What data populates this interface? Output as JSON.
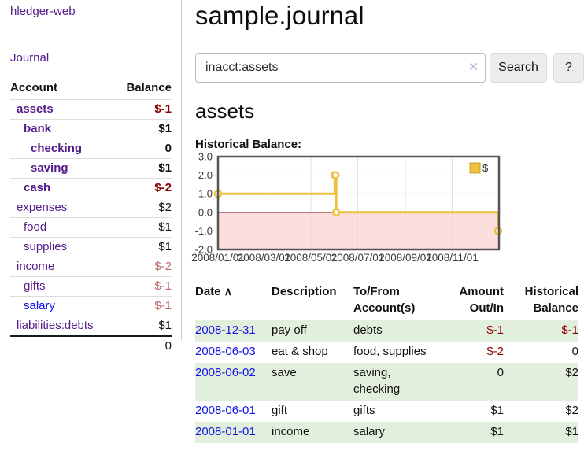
{
  "sidebar": {
    "brand": "hledger-web",
    "journal_link": "Journal",
    "accounts": {
      "col_account": "Account",
      "col_balance": "Balance",
      "rows": [
        {
          "name": "assets",
          "indent": 1,
          "bold": true,
          "balance": "$-1"
        },
        {
          "name": "bank",
          "indent": 2,
          "bold": true,
          "balance": "$1"
        },
        {
          "name": "checking",
          "indent": 3,
          "bold": true,
          "balance": "0"
        },
        {
          "name": "saving",
          "indent": 3,
          "bold": true,
          "balance": "$1"
        },
        {
          "name": "cash",
          "indent": 2,
          "bold": true,
          "balance": "$-2"
        },
        {
          "name": "expenses",
          "indent": 1,
          "bold": false,
          "balance": "$2"
        },
        {
          "name": "food",
          "indent": 2,
          "bold": false,
          "balance": "$1"
        },
        {
          "name": "supplies",
          "indent": 2,
          "bold": false,
          "balance": "$1"
        },
        {
          "name": "income",
          "indent": 1,
          "bold": false,
          "balance": "$-2"
        },
        {
          "name": "gifts",
          "indent": 2,
          "bold": false,
          "balance": "$-1"
        },
        {
          "name": "salary",
          "indent": 2,
          "bold": false,
          "balance": "$-1",
          "unvisited": true
        },
        {
          "name": "liabilities:debts",
          "indent": 1,
          "bold": false,
          "balance": "$1"
        }
      ],
      "total": "0"
    }
  },
  "main": {
    "title": "sample.journal",
    "search": {
      "value": "inacct:assets",
      "clear_icon": "✕",
      "search_button": "Search",
      "help_button": "?"
    },
    "account_heading": "assets",
    "chart_label": "Historical Balance:"
  },
  "chart_data": {
    "type": "line",
    "step": true,
    "title": "Historical Balance:",
    "x_range": [
      "2008/01/01",
      "2009/01/01"
    ],
    "x_ticks": [
      "2008/01/01",
      "2008/03/01",
      "2008/05/01",
      "2008/07/01",
      "2008/09/01",
      "2008/11/01"
    ],
    "y_ticks": [
      3.0,
      2.0,
      1.0,
      0.0,
      -1.0,
      -2.0
    ],
    "ylim": [
      -2.0,
      3.0
    ],
    "grid": true,
    "series": [
      {
        "name": "$",
        "color": "#edc240",
        "points": [
          [
            "2008/01/01",
            1
          ],
          [
            "2008/06/01",
            2
          ],
          [
            "2008/06/02",
            2
          ],
          [
            "2008/06/03",
            0
          ],
          [
            "2008/12/31",
            -1
          ]
        ]
      }
    ],
    "legend": {
      "label": "$",
      "position": "top-right"
    },
    "negative_region_color": "#fcdede",
    "zero_line_color": "#8b1010",
    "grid_color": "#e0e0e0",
    "border_color": "#545454"
  },
  "register": {
    "headers": {
      "date": "Date",
      "description": "Description",
      "accounts": "To/From Account(s)",
      "amount": "Amount Out/In",
      "balance": "Historical Balance"
    },
    "sort_icon": "∧",
    "rows": [
      {
        "date": "2008-12-31",
        "description": "pay off",
        "accounts": "debts",
        "amount": "$-1",
        "balance": "$-1"
      },
      {
        "date": "2008-06-03",
        "description": "eat & shop",
        "accounts": "food, supplies",
        "amount": "$-2",
        "balance": "0"
      },
      {
        "date": "2008-06-02",
        "description": "save",
        "accounts": "saving, checking",
        "amount": "0",
        "balance": "$2"
      },
      {
        "date": "2008-06-01",
        "description": "gift",
        "accounts": "gifts",
        "amount": "$1",
        "balance": "$2"
      },
      {
        "date": "2008-01-01",
        "description": "income",
        "accounts": "salary",
        "amount": "$1",
        "balance": "$1"
      }
    ]
  },
  "colors": {
    "link_purple": "#551a8b",
    "link_blue": "#0d0dee",
    "negative_bold": "#8b0000",
    "negative_muted": "#bd6a6a",
    "row_green": "#e2efdc",
    "accent_gold": "#edc240"
  }
}
